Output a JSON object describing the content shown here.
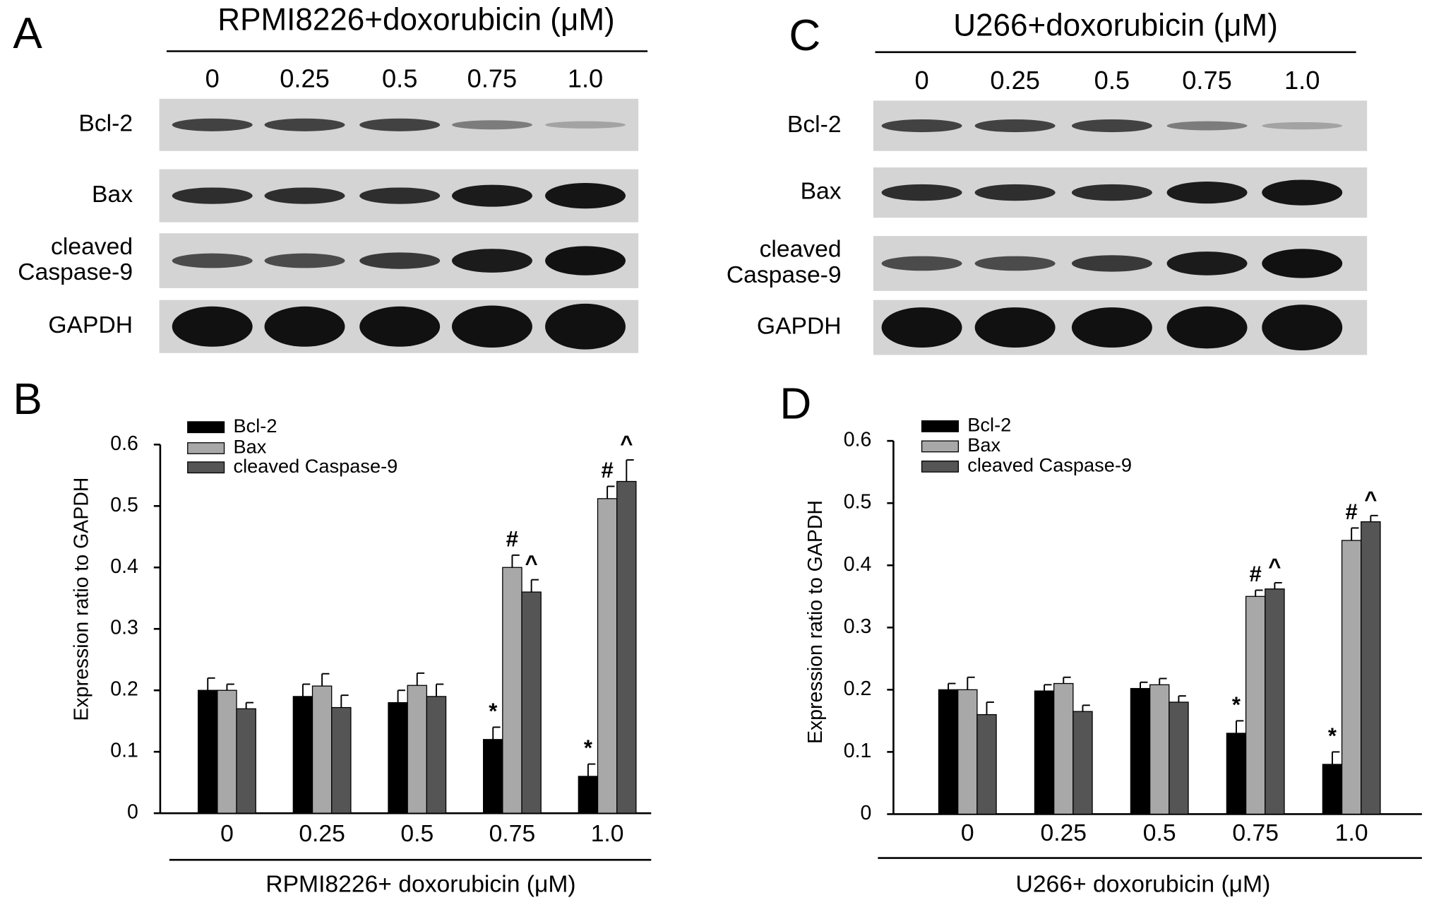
{
  "blots": [
    {
      "panel": "A",
      "title": "RPMI8226+doxorubicin (μM)",
      "lanes": [
        "0",
        "0.25",
        "0.5",
        "0.75",
        "1.0"
      ],
      "rows": [
        [
          "Bcl-2"
        ],
        [
          "Bax"
        ],
        [
          "cleaved",
          "Caspase-9"
        ],
        [
          "GAPDH"
        ]
      ]
    },
    {
      "panel": "C",
      "title": "U266+doxorubicin (μM)",
      "lanes": [
        "0",
        "0.25",
        "0.5",
        "0.75",
        "1.0"
      ],
      "rows": [
        [
          "Bcl-2"
        ],
        [
          "Bax"
        ],
        [
          "cleaved",
          "Caspase-9"
        ],
        [
          "GAPDH"
        ]
      ]
    }
  ],
  "chart_data": [
    {
      "type": "bar",
      "panel": "B",
      "xlabel": "RPMI8226+ doxorubicin (μM)",
      "ylabel": "Expression ratio to GAPDH",
      "categories": [
        "0",
        "0.25",
        "0.5",
        "0.75",
        "1.0"
      ],
      "ylim": [
        0,
        0.6
      ],
      "yticks": [
        0,
        0.1,
        0.2,
        0.3,
        0.4,
        0.5,
        0.6
      ],
      "series": [
        {
          "name": "Bcl-2",
          "color": "#000000",
          "values": [
            0.2,
            0.19,
            0.18,
            0.12,
            0.06
          ],
          "errors": [
            0.02,
            0.02,
            0.02,
            0.02,
            0.02
          ],
          "markers": [
            null,
            null,
            null,
            "*",
            "*"
          ]
        },
        {
          "name": "Bax",
          "color": "#a8a8a8",
          "values": [
            0.2,
            0.207,
            0.208,
            0.4,
            0.512
          ],
          "errors": [
            0.01,
            0.02,
            0.02,
            0.02,
            0.02
          ],
          "markers": [
            null,
            null,
            null,
            "#",
            "#"
          ]
        },
        {
          "name": "cleaved Caspase-9",
          "color": "#555555",
          "values": [
            0.17,
            0.172,
            0.19,
            0.36,
            0.54
          ],
          "errors": [
            0.01,
            0.02,
            0.02,
            0.02,
            0.035
          ],
          "markers": [
            null,
            null,
            null,
            "^",
            "^"
          ]
        }
      ]
    },
    {
      "type": "bar",
      "panel": "D",
      "xlabel": "U266+ doxorubicin (μM)",
      "ylabel": "Expression ratio to GAPDH",
      "categories": [
        "0",
        "0.25",
        "0.5",
        "0.75",
        "1.0"
      ],
      "ylim": [
        0,
        0.6
      ],
      "yticks": [
        0,
        0.1,
        0.2,
        0.3,
        0.4,
        0.5,
        0.6
      ],
      "series": [
        {
          "name": "Bcl-2",
          "color": "#000000",
          "values": [
            0.2,
            0.198,
            0.202,
            0.13,
            0.08
          ],
          "errors": [
            0.01,
            0.01,
            0.01,
            0.02,
            0.02
          ],
          "markers": [
            null,
            null,
            null,
            "*",
            "*"
          ]
        },
        {
          "name": "Bax",
          "color": "#a8a8a8",
          "values": [
            0.2,
            0.21,
            0.208,
            0.35,
            0.44
          ],
          "errors": [
            0.02,
            0.01,
            0.01,
            0.01,
            0.02
          ],
          "markers": [
            null,
            null,
            null,
            "#",
            "#"
          ]
        },
        {
          "name": "cleaved Caspase-9",
          "color": "#555555",
          "values": [
            0.16,
            0.165,
            0.18,
            0.362,
            0.47
          ],
          "errors": [
            0.02,
            0.01,
            0.01,
            0.01,
            0.01
          ],
          "markers": [
            null,
            null,
            null,
            "^",
            "^"
          ]
        }
      ]
    }
  ]
}
